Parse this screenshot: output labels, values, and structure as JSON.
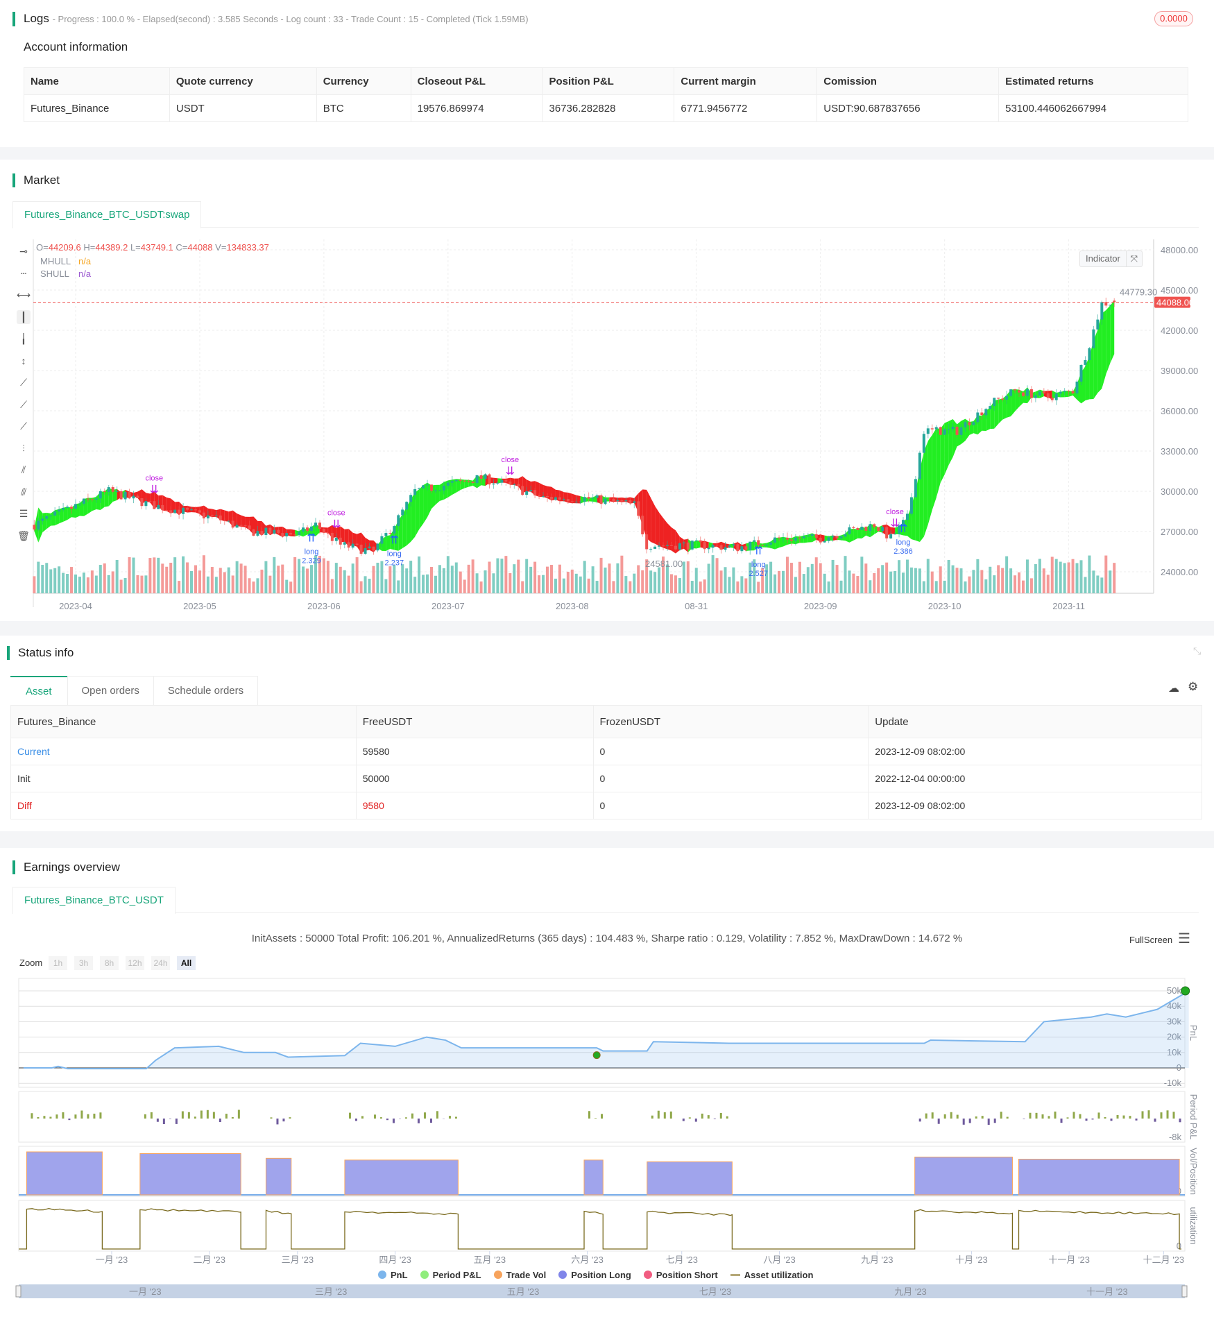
{
  "logs": {
    "title": "Logs",
    "status": "- Progress : 100.0 % - Elapsed(second) : 3.585  Seconds - Log count : 33 - Trade Count : 15 - Completed (Tick 1.59MB)",
    "badge": "0.0000"
  },
  "account": {
    "title": "Account information",
    "columns": [
      "Name",
      "Quote currency",
      "Currency",
      "Closeout P&L",
      "Position P&L",
      "Current margin",
      "Comission",
      "Estimated returns"
    ],
    "row": [
      "Futures_Binance",
      "USDT",
      "BTC",
      "19576.869974",
      "36736.282828",
      "6771.9456772",
      "USDT:90.687837656",
      "53100.446062667994"
    ]
  },
  "market": {
    "title": "Market",
    "tab": "Futures_Binance_BTC_USDT:swap",
    "ohlc": {
      "o_label": "O=",
      "o": "44209.6",
      "h_label": "H=",
      "h": "44389.2",
      "l_label": "L=",
      "l": "43749.1",
      "c_label": "C=",
      "c": "44088",
      "v_label": "V=",
      "v": "134833.37"
    },
    "indicators": [
      {
        "name": "MHULL",
        "value": "n/a",
        "color": "#f5a623"
      },
      {
        "name": "SHULL",
        "value": "n/a",
        "color": "#9b59d0"
      }
    ],
    "indicator_button": "Indicator",
    "toolbar_icons": [
      "horizontal-ray-icon",
      "horizontal-line-icon",
      "horizontal-segment-icon",
      "vertical-line-icon",
      "vertical-ray-icon",
      "vertical-segment-icon",
      "ray-icon",
      "trend-line-icon",
      "segment-icon",
      "price-line-icon",
      "parallel-channel-icon",
      "fib-channel-icon",
      "fib-retracement-icon",
      "trash-icon"
    ]
  },
  "chart_data": [
    {
      "type": "candlestick",
      "y_ticks": [
        "48000.00",
        "45000.00",
        "42000.00",
        "39000.00",
        "36000.00",
        "33000.00",
        "30000.00",
        "27000.00",
        "24000.00"
      ],
      "ylim": [
        22500,
        49000
      ],
      "x_ticks": [
        "2023-04",
        "2023-05",
        "2023-06",
        "2023-07",
        "2023-08",
        "08-31",
        "2023-09",
        "2023-10",
        "2023-11"
      ],
      "x_tick_dates": [
        "2023-04-01",
        "2023-05-01",
        "2023-05-31",
        "2023-06-30",
        "2023-07-30",
        "2023-08-29",
        "2023-09-28",
        "2023-10-28",
        "2023-11-27"
      ],
      "last_price": "44088.00",
      "high_label": "44779.30",
      "low_label": "24581.00",
      "colors": {
        "up": "#26a69a",
        "down": "#ef5350",
        "band_up": "#22ee22",
        "band_down": "#ee2222"
      },
      "close_path": [
        [
          "2023-03-22",
          27500
        ],
        [
          "2023-04-09",
          30000
        ],
        [
          "2023-04-19",
          29000
        ],
        [
          "2023-05-05",
          28000
        ],
        [
          "2023-05-13",
          27000
        ],
        [
          "2023-05-25",
          26800
        ],
        [
          "2023-05-29",
          27500
        ],
        [
          "2023-06-04",
          26000
        ],
        [
          "2023-06-12",
          25500
        ],
        [
          "2023-06-18",
          28000
        ],
        [
          "2023-06-22",
          30000
        ],
        [
          "2023-06-30",
          30500
        ],
        [
          "2023-07-08",
          31000
        ],
        [
          "2023-07-14",
          30500
        ],
        [
          "2023-07-23",
          29500
        ],
        [
          "2023-08-02",
          29500
        ],
        [
          "2023-08-14",
          29000
        ],
        [
          "2023-08-17",
          26000
        ],
        [
          "2023-08-29",
          26000
        ],
        [
          "2023-09-08",
          25800
        ],
        [
          "2023-09-18",
          26500
        ],
        [
          "2023-09-28",
          26500
        ],
        [
          "2023-10-11",
          27500
        ],
        [
          "2023-10-15",
          26500
        ],
        [
          "2023-10-19",
          28000
        ],
        [
          "2023-10-23",
          34500
        ],
        [
          "2023-10-31",
          34500
        ],
        [
          "2023-11-08",
          36500
        ],
        [
          "2023-11-14",
          37500
        ],
        [
          "2023-11-22",
          37000
        ],
        [
          "2023-11-28",
          37500
        ],
        [
          "2023-12-02",
          41000
        ],
        [
          "2023-12-05",
          44000
        ],
        [
          "2023-12-08",
          44088
        ]
      ],
      "annotations": [
        {
          "date": "2023-04-20",
          "text": "close",
          "type": "close"
        },
        {
          "date": "2023-05-28",
          "text": "long 2.329",
          "type": "long"
        },
        {
          "date": "2023-06-03",
          "text": "close",
          "type": "close"
        },
        {
          "date": "2023-06-17",
          "text": "long 2.237",
          "type": "long"
        },
        {
          "date": "2023-07-15",
          "text": "close",
          "type": "close"
        },
        {
          "date": "2023-09-13",
          "text": "long 2.527",
          "type": "long"
        },
        {
          "date": "2023-10-16",
          "text": "close",
          "type": "close"
        },
        {
          "date": "2023-10-18",
          "text": "long 2.386",
          "type": "long"
        }
      ]
    },
    {
      "type": "line",
      "summary": "InitAssets : 50000 Total Profit: 106.201 %, AnnualizedReturns (365 days) : 104.483 %, Sharpe ratio : 0.129, Volatility : 7.852 %, MaxDrawDown : 14.672 %",
      "pnl_ticks": [
        "50k",
        "40k",
        "30k",
        "20k",
        "10k",
        "0",
        "-10k"
      ],
      "pnl_ylim": [
        -10000,
        55000
      ],
      "period_pnl_tick": "-8k",
      "vol_tick": "0",
      "util_tick": "0",
      "panel_labels": [
        "PnL",
        "Period P&L",
        "Vol/Position",
        "utilization"
      ],
      "x_ticks": [
        "一月 '23",
        "二月 '23",
        "三月 '23",
        "四月 '23",
        "五月 '23",
        "六月 '23",
        "七月 '23",
        "八月 '23",
        "九月 '23",
        "十月 '23",
        "十一月 '23",
        "十二月 '23"
      ],
      "navigator_ticks": [
        "一月 '23",
        "三月 '23",
        "五月 '23",
        "七月 '23",
        "九月 '23",
        "十一月 '23"
      ],
      "pnl": [
        [
          "2022-12-04",
          0
        ],
        [
          "2022-12-13",
          0
        ],
        [
          "2022-12-15",
          1000
        ],
        [
          "2022-12-18",
          -500
        ],
        [
          "2023-01-12",
          -500
        ],
        [
          "2023-01-15",
          5000
        ],
        [
          "2023-01-21",
          13000
        ],
        [
          "2023-02-04",
          14000
        ],
        [
          "2023-02-12",
          10000
        ],
        [
          "2023-02-22",
          10000
        ],
        [
          "2023-02-26",
          7000
        ],
        [
          "2023-03-16",
          8000
        ],
        [
          "2023-03-21",
          16000
        ],
        [
          "2023-04-01",
          14000
        ],
        [
          "2023-04-11",
          20000
        ],
        [
          "2023-04-17",
          18000
        ],
        [
          "2023-04-22",
          13000
        ],
        [
          "2023-06-04",
          13000
        ],
        [
          "2023-06-06",
          11000
        ],
        [
          "2023-06-20",
          11000
        ],
        [
          "2023-06-22",
          17000
        ],
        [
          "2023-07-16",
          16000
        ],
        [
          "2023-09-16",
          16000
        ],
        [
          "2023-09-18",
          18000
        ],
        [
          "2023-10-18",
          17000
        ],
        [
          "2023-10-24",
          30000
        ],
        [
          "2023-11-08",
          33000
        ],
        [
          "2023-11-13",
          35000
        ],
        [
          "2023-11-19",
          33000
        ],
        [
          "2023-11-29",
          38000
        ],
        [
          "2023-12-09",
          50000
        ]
      ],
      "positions": [
        {
          "start": "2022-12-05",
          "end": "2022-12-29",
          "level": 1.0
        },
        {
          "start": "2023-01-10",
          "end": "2023-02-11",
          "level": 0.96
        },
        {
          "start": "2023-02-19",
          "end": "2023-02-27",
          "level": 0.85
        },
        {
          "start": "2023-03-16",
          "end": "2023-04-21",
          "level": 0.81
        },
        {
          "start": "2023-05-31",
          "end": "2023-06-06",
          "level": 0.81
        },
        {
          "start": "2023-06-20",
          "end": "2023-07-17",
          "level": 0.77
        },
        {
          "start": "2023-09-13",
          "end": "2023-10-14",
          "level": 0.88
        },
        {
          "start": "2023-10-16",
          "end": "2023-12-06",
          "level": 0.83
        }
      ],
      "colors": {
        "pnl": "#7cb5ec",
        "period_up": "#90a84a",
        "period_down": "#6e5a9c",
        "position": "#a0a4ec",
        "position_edge": "#f7a35c",
        "util": "#7a6a1e"
      },
      "legend": [
        {
          "label": "PnL",
          "color": "#7cb5ec"
        },
        {
          "label": "Period P&L",
          "color": "#90ed7d"
        },
        {
          "label": "Trade Vol",
          "color": "#f7a35c"
        },
        {
          "label": "Position Long",
          "color": "#8085e9"
        },
        {
          "label": "Position Short",
          "color": "#f15c80"
        },
        {
          "label": "Asset utilization",
          "color": "#b5a878"
        }
      ]
    }
  ],
  "status": {
    "title": "Status info",
    "tabs": [
      "Asset",
      "Open orders",
      "Schedule orders"
    ],
    "columns": [
      "Futures_Binance",
      "FreeUSDT",
      "FrozenUSDT",
      "Update"
    ],
    "rows": [
      {
        "label": "Current",
        "free": "59580",
        "frozen": "0",
        "update": "2023-12-09 08:02:00",
        "color": "#3a8ee6"
      },
      {
        "label": "Init",
        "free": "50000",
        "frozen": "0",
        "update": "2022-12-04 00:00:00",
        "color": "#333333"
      },
      {
        "label": "Diff",
        "free": "9580",
        "frozen": "0",
        "update": "2023-12-09 08:02:00",
        "color": "#e02020"
      }
    ]
  },
  "earnings": {
    "title": "Earnings overview",
    "tab": "Futures_Binance_BTC_USDT",
    "fullscreen": "FullScreen",
    "zoom_label": "Zoom",
    "zoom_options": [
      "1h",
      "3h",
      "8h",
      "12h",
      "24h",
      "All"
    ],
    "zoom_selected": "All"
  }
}
